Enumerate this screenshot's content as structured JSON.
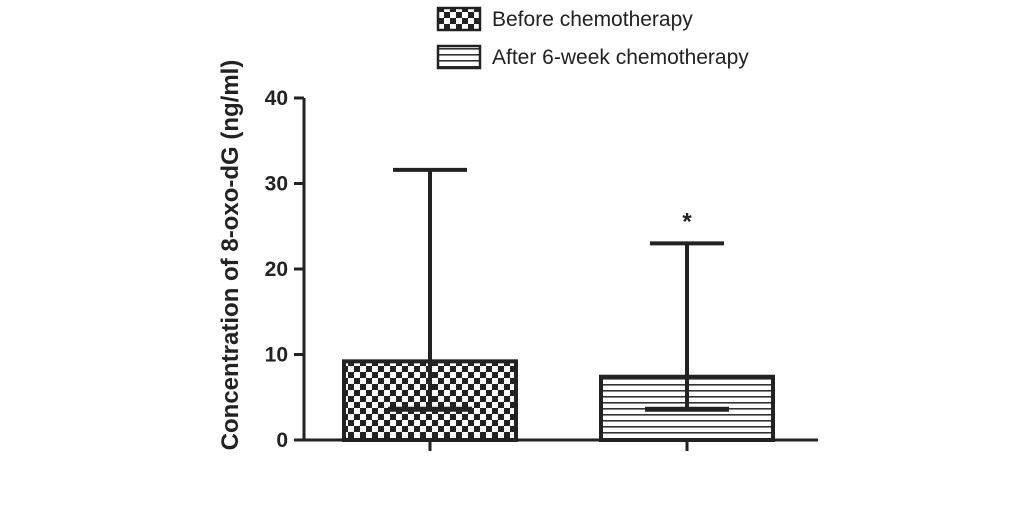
{
  "chart_data": {
    "type": "bar",
    "title": "",
    "xlabel": "",
    "ylabel": "Concentration of 8-oxo-dG (ng/ml)",
    "ylim": [
      0,
      40
    ],
    "yticks": [
      "0",
      "10",
      "20",
      "30",
      "40"
    ],
    "grid": false,
    "legend_position": "top",
    "categories": [
      "Before chemotherapy",
      "After 6-week chemotherapy"
    ],
    "series": [
      {
        "name": "Before chemotherapy",
        "pattern": "checkerboard",
        "value": 9.2,
        "error_high": 31.6,
        "error_low": 3.6,
        "annotation": ""
      },
      {
        "name": "After 6-week chemotherapy",
        "pattern": "horizontal-stripes",
        "value": 7.4,
        "error_high": 23.0,
        "error_low": 3.6,
        "annotation": "*"
      }
    ],
    "colors": {
      "ink": "#222222",
      "background": "#ffffff"
    }
  }
}
